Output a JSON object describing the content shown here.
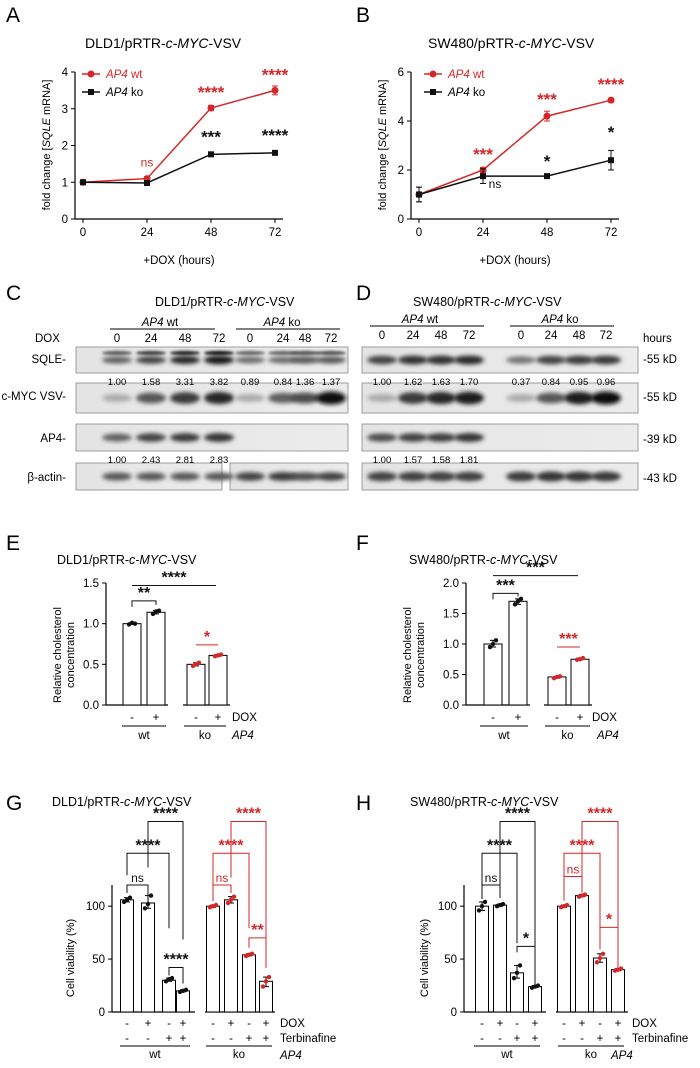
{
  "panel_labels": [
    "A",
    "B",
    "C",
    "D",
    "E",
    "F",
    "G",
    "H"
  ],
  "colors": {
    "wt": "#d62728",
    "ko": "#111111"
  },
  "panelA": {
    "title_pre": "DLD1/pRTR-",
    "title_gene": "c-MYC",
    "title_post": "-VSV"
  },
  "panelB": {
    "title_pre": "SW480/pRTR-",
    "title_gene": "c-MYC",
    "title_post": "-VSV"
  },
  "line_common": {
    "ylabel_pre": "fold change [",
    "ylabel_gene": "SQLE",
    "ylabel_post": " mRNA]",
    "xlabel": "+DOX (hours)",
    "legend_wt_gene": "AP4",
    "legend_wt_suffix": " wt",
    "legend_ko_gene": "AP4",
    "legend_ko_suffix": " ko"
  },
  "chart_data": [
    {
      "panel": "A",
      "type": "line",
      "x": [
        0,
        24,
        48,
        72
      ],
      "xticks": [
        "0",
        "24",
        "48",
        "72"
      ],
      "ylim": [
        0,
        4
      ],
      "yticks": [
        "0",
        "1",
        "2",
        "3",
        "4"
      ],
      "series": [
        {
          "name": "AP4 wt",
          "values": [
            1.0,
            1.1,
            3.02,
            3.5
          ],
          "err": [
            0.02,
            0.05,
            0.07,
            0.12
          ],
          "sig": [
            "",
            "ns",
            "****",
            "****"
          ]
        },
        {
          "name": "AP4 ko",
          "values": [
            1.0,
            0.98,
            1.76,
            1.8
          ],
          "err": [
            0.02,
            0.03,
            0.03,
            0.05
          ],
          "sig": [
            "",
            "",
            "***",
            "****"
          ]
        }
      ]
    },
    {
      "panel": "B",
      "type": "line",
      "x": [
        0,
        24,
        48,
        72
      ],
      "xticks": [
        "0",
        "24",
        "48",
        "72"
      ],
      "ylim": [
        0,
        6
      ],
      "yticks": [
        "0",
        "2",
        "4",
        "6"
      ],
      "series": [
        {
          "name": "AP4 wt",
          "values": [
            1.0,
            2.0,
            4.2,
            4.85
          ],
          "err": [
            0.3,
            0.1,
            0.2,
            0.08
          ],
          "sig": [
            "",
            "***",
            "***",
            "****"
          ]
        },
        {
          "name": "AP4 ko",
          "values": [
            1.0,
            1.75,
            1.75,
            2.4
          ],
          "err": [
            0.3,
            0.3,
            0.05,
            0.4
          ],
          "sig": [
            "",
            "ns",
            "*",
            "*"
          ]
        }
      ]
    },
    {
      "panel": "E",
      "type": "bar",
      "ylabel": "Relative cholesterol concentration",
      "ylim": [
        0,
        1.5
      ],
      "yticks": [
        "0.0",
        "0.5",
        "1.0",
        "1.5"
      ],
      "categories": [
        "wt -",
        "wt +",
        "ko -",
        "ko +"
      ],
      "values": [
        1.0,
        1.14,
        0.5,
        0.61
      ],
      "points": [
        [
          0.99,
          1.01,
          1.0
        ],
        [
          1.12,
          1.15,
          1.16
        ],
        [
          0.48,
          0.5,
          0.52
        ],
        [
          0.6,
          0.61,
          0.62
        ]
      ],
      "colors": [
        "#111111",
        "#111111",
        "#d62728",
        "#d62728"
      ]
    },
    {
      "panel": "F",
      "type": "bar",
      "ylabel": "Relative cholesterol concentration",
      "ylim": [
        0,
        2.0
      ],
      "yticks": [
        "0.0",
        "0.5",
        "1.0",
        "1.5",
        "2.0"
      ],
      "categories": [
        "wt -",
        "wt +",
        "ko -",
        "ko +"
      ],
      "values": [
        1.0,
        1.7,
        0.46,
        0.75
      ],
      "points": [
        [
          0.95,
          1.0,
          1.06
        ],
        [
          1.65,
          1.7,
          1.74
        ],
        [
          0.44,
          0.46,
          0.47
        ],
        [
          0.74,
          0.75,
          0.77
        ]
      ],
      "colors": [
        "#111111",
        "#111111",
        "#d62728",
        "#d62728"
      ]
    },
    {
      "panel": "G",
      "type": "bar",
      "ylabel": "Cell viability (%)",
      "ylim": [
        0,
        120
      ],
      "yticks": [
        "0",
        "50",
        "100"
      ],
      "categories": [
        "wt -/-",
        "wt +/-",
        "wt -/+",
        "wt +/+",
        "ko -/-",
        "ko +/-",
        "ko -/+",
        "ko +/+"
      ],
      "values": [
        106,
        103,
        30,
        20,
        100,
        106,
        54,
        29
      ],
      "points": [
        [
          104,
          106,
          108
        ],
        [
          98,
          102,
          110
        ],
        [
          29,
          31,
          32
        ],
        [
          19,
          20,
          21
        ],
        [
          99,
          100,
          101
        ],
        [
          103,
          106,
          109
        ],
        [
          53,
          54,
          55
        ],
        [
          24,
          29,
          33
        ]
      ],
      "colors": [
        "#111111",
        "#111111",
        "#111111",
        "#111111",
        "#d62728",
        "#d62728",
        "#d62728",
        "#d62728"
      ]
    },
    {
      "panel": "H",
      "type": "bar",
      "ylabel": "Cell viability (%)",
      "ylim": [
        0,
        120
      ],
      "yticks": [
        "0",
        "50",
        "100"
      ],
      "categories": [
        "wt -/-",
        "wt +/-",
        "wt -/+",
        "wt +/+",
        "ko -/-",
        "ko +/-",
        "ko -/+",
        "ko +/+"
      ],
      "values": [
        100,
        101,
        37,
        24,
        100,
        110,
        51,
        40
      ],
      "points": [
        [
          96,
          100,
          104
        ],
        [
          100,
          101,
          102
        ],
        [
          32,
          37,
          44
        ],
        [
          23,
          24,
          25
        ],
        [
          99,
          100,
          101
        ],
        [
          109,
          110,
          111
        ],
        [
          47,
          51,
          55
        ],
        [
          39,
          40,
          41
        ]
      ],
      "colors": [
        "#111111",
        "#111111",
        "#111111",
        "#111111",
        "#d62728",
        "#d62728",
        "#d62728",
        "#d62728"
      ]
    }
  ],
  "panelE": {
    "title_pre": "DLD1/pRTR-",
    "title_gene": "c-MYC",
    "title_post": "-VSV",
    "sig_big": "****",
    "sig_wt": "**",
    "sig_ko": "*"
  },
  "panelF": {
    "title_pre": "SW480/pRTR-",
    "title_gene": "c-MYC",
    "title_post": "-VSV",
    "sig_big": "***",
    "sig_wt": "***",
    "sig_ko": "***"
  },
  "bar_common": {
    "ylabel_l1": "Relative cholesterol",
    "ylabel_l2": "concentration",
    "minus": "-",
    "plus": "+",
    "dox": "DOX",
    "wt": "wt",
    "ko": "ko",
    "ap4": "AP4",
    "terbinafine": "Terbinafine",
    "viability": "Cell viability (%)",
    "ns": "ns",
    "s4": "****",
    "s2": "**",
    "s1": "*"
  },
  "panelG": {
    "title_pre": "DLD1/pRTR-",
    "title_gene": "c-MYC",
    "title_post": "-VSV"
  },
  "panelH": {
    "title_pre": "SW480/pRTR-",
    "title_gene": "c-MYC",
    "title_post": "-VSV"
  },
  "blotC": {
    "title_pre": "DLD1/pRTR-",
    "title_gene": "c-MYC",
    "title_post": "-VSV",
    "wt_gene": "AP4",
    "wt_suffix": " wt",
    "ko_gene": "AP4",
    "ko_suffix": " ko",
    "dox_label": "DOX",
    "times": [
      "0",
      "24",
      "48",
      "72"
    ],
    "rows": [
      "SQLE-",
      "c-MYC VSV-",
      "AP4-",
      "β-actin-"
    ],
    "sqle_quant": [
      "1.00",
      "1.58",
      "3.31",
      "3.82",
      "0.89",
      "0.84",
      "1.36",
      "1.37"
    ],
    "ap4_quant": [
      "1.00",
      "2.43",
      "2.81",
      "2.83"
    ]
  },
  "blotD": {
    "title_pre": "SW480/pRTR-",
    "title_gene": "c-MYC",
    "title_post": "-VSV",
    "wt_gene": "AP4",
    "wt_suffix": " wt",
    "ko_gene": "AP4",
    "ko_suffix": " ko",
    "times": [
      "0",
      "24",
      "48",
      "72"
    ],
    "hours": "hours",
    "mw": [
      "-55 kD",
      "-55 kD",
      "-39 kD",
      "-43 kD"
    ],
    "sqle_quant": [
      "1.00",
      "1.62",
      "1.63",
      "1.70",
      "0.37",
      "0.84",
      "0.95",
      "0.96"
    ],
    "ap4_quant": [
      "1.00",
      "1.57",
      "1.58",
      "1.81"
    ]
  }
}
